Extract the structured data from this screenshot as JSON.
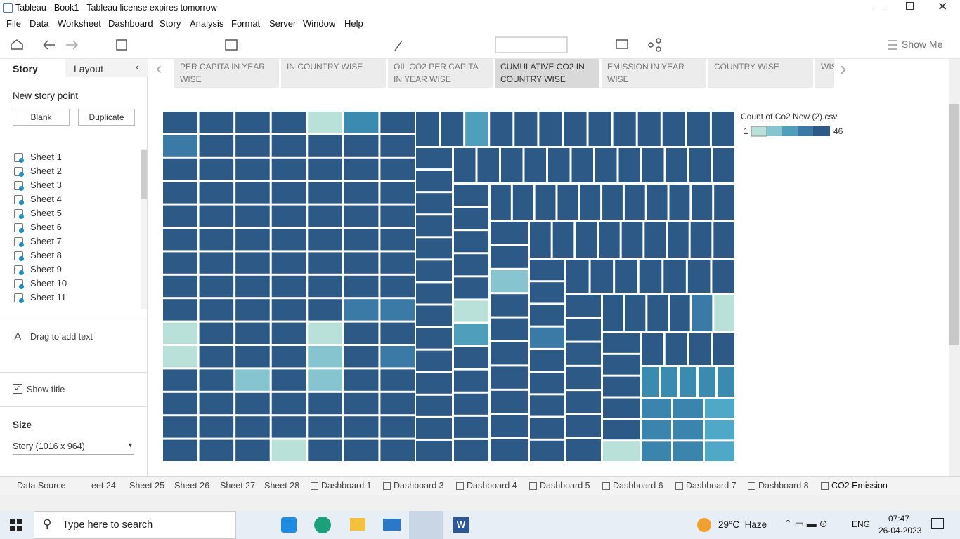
{
  "window": {
    "title": "Tableau - Book1 - Tableau license expires tomorrow"
  },
  "menu": [
    "File",
    "Data",
    "Worksheet",
    "Dashboard",
    "Story",
    "Analysis",
    "Format",
    "Server",
    "Window",
    "Help"
  ],
  "toolbar": {
    "show_me": "Show Me"
  },
  "sidebar": {
    "tabs": [
      "Story",
      "Layout"
    ],
    "new_story_point": "New story point",
    "buttons": [
      "Blank",
      "Duplicate"
    ],
    "sheets": [
      "Sheet 1",
      "Sheet 2",
      "Sheet 3",
      "Sheet 4",
      "Sheet 5",
      "Sheet 6",
      "Sheet 7",
      "Sheet 8",
      "Sheet 9",
      "Sheet 10",
      "Sheet 11"
    ],
    "drag_text": "Drag to add text",
    "show_title": "Show title",
    "size_label": "Size",
    "size_value": "Story (1016 x 964)"
  },
  "story_points": [
    "PER CAPITA IN YEAR WISE",
    "IN COUNTRY WISE",
    "OIL CO2 PER CAPITA IN YEAR WISE",
    "CUMULATIVE CO2 IN COUNTRY WISE",
    "EMISSION  IN YEAR WISE",
    "COUNTRY WISE",
    "WIS"
  ],
  "legend": {
    "title": "Count of Co2 New (2).csv",
    "min": "1",
    "max": "46"
  },
  "tabs": [
    "Data Source",
    "eet 24",
    "Sheet 25",
    "Sheet 26",
    "Sheet 27",
    "Sheet 28",
    "Dashboard 1",
    "Dashboard 3",
    "Dashboard 4",
    "Dashboard 5",
    "Dashboard 6",
    "Dashboard 7",
    "Dashboard 8",
    "CO2 Emission"
  ],
  "taskbar": {
    "search": "Type here to search",
    "weather": "29°C  Haze",
    "language": "ENG",
    "time": "07:47",
    "date": "26-04-2023"
  }
}
